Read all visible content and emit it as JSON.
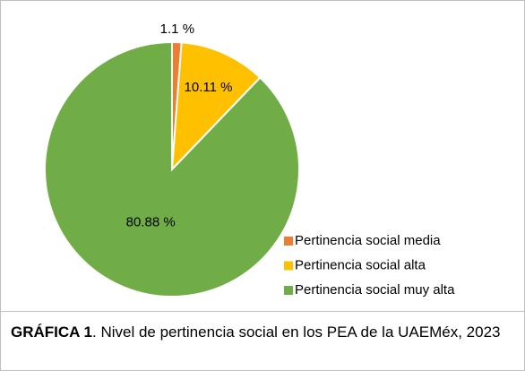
{
  "chart_data": {
    "type": "pie",
    "categories": [
      "Pertinencia social media",
      "Pertinencia social alta",
      "Pertinencia social muy alta"
    ],
    "values": [
      1.1,
      10.11,
      80.88
    ],
    "value_labels": [
      "1.1 %",
      "10.11 %",
      "80.88 %"
    ],
    "colors": [
      "#ed7d31",
      "#ffc000",
      "#70ad47"
    ],
    "legend": "lower right"
  },
  "caption": {
    "label": "GRÁFICA 1",
    "text": ". Nivel de pertinencia social en los PEA de la UAEMéx, 2023"
  }
}
